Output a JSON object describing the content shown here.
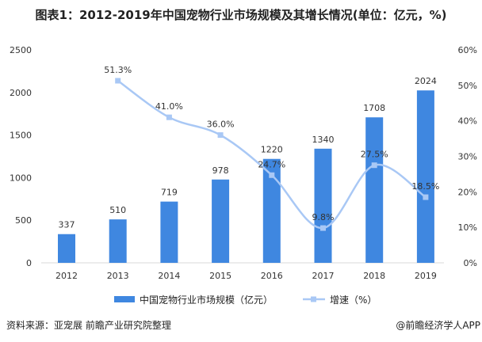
{
  "title": "图表1：2012-2019年中国宠物行业市场规模及其增长情况(单位：亿元，%)",
  "source": "资料来源：亚宠展 前瞻产业研究院整理",
  "credit": "@前瞻经济学人APP",
  "chart_data": {
    "type": "bar+line",
    "categories": [
      "2012",
      "2013",
      "2014",
      "2015",
      "2016",
      "2017",
      "2018",
      "2019"
    ],
    "series": [
      {
        "name": "中国宠物行业市场规模（亿元）",
        "type": "bar",
        "axis": "left",
        "color": "#3f87e0",
        "values": [
          337,
          510,
          719,
          978,
          1220,
          1340,
          1708,
          2024
        ],
        "labels": [
          "337",
          "510",
          "719",
          "978",
          "1220",
          "1340",
          "1708",
          "2024"
        ]
      },
      {
        "name": "增速（%）",
        "type": "line",
        "axis": "right",
        "color": "#a9c8f5",
        "values": [
          null,
          51.3,
          41.0,
          36.0,
          24.7,
          9.8,
          27.5,
          18.5
        ],
        "labels": [
          "",
          "51.3%",
          "41.0%",
          "36.0%",
          "24.7%",
          "9.8%",
          "27.5%",
          "18.5%"
        ]
      }
    ],
    "left_axis": {
      "min": 0,
      "max": 2500,
      "ticks": [
        "0",
        "500",
        "1000",
        "1500",
        "2000",
        "2500"
      ]
    },
    "right_axis": {
      "min": 0,
      "max": 60,
      "ticks": [
        "0%",
        "10%",
        "20%",
        "30%",
        "40%",
        "50%",
        "60%"
      ]
    },
    "grid": false,
    "legend": "bottom"
  }
}
